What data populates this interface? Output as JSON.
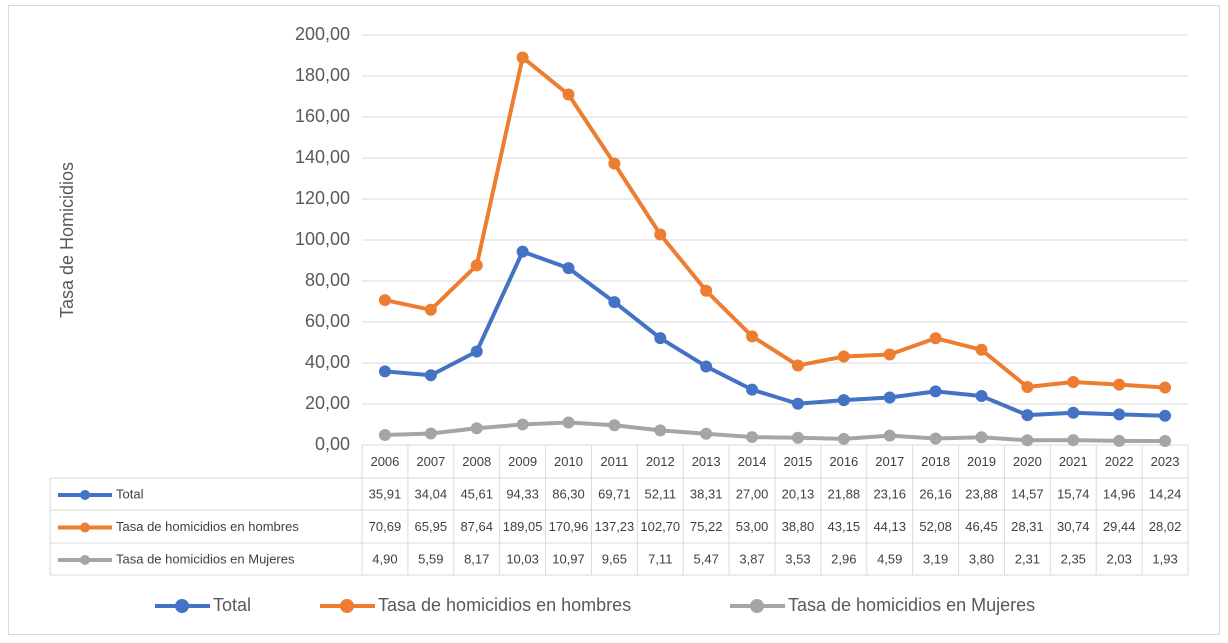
{
  "chart_data": {
    "type": "line",
    "y_label": "Tasa de Homicidios",
    "categories": [
      "2006",
      "2007",
      "2008",
      "2009",
      "2010",
      "2011",
      "2012",
      "2013",
      "2014",
      "2015",
      "2016",
      "2017",
      "2018",
      "2019",
      "2020",
      "2021",
      "2022",
      "2023"
    ],
    "series": [
      {
        "name": "Total",
        "color": "#4472c4",
        "values": [
          35.91,
          34.04,
          45.61,
          94.33,
          86.3,
          69.71,
          52.11,
          38.31,
          27.0,
          20.13,
          21.88,
          23.16,
          26.16,
          23.88,
          14.57,
          15.74,
          14.96,
          14.24
        ],
        "value_labels": [
          "35,91",
          "34,04",
          "45,61",
          "94,33",
          "86,30",
          "69,71",
          "52,11",
          "38,31",
          "27,00",
          "20,13",
          "21,88",
          "23,16",
          "26,16",
          "23,88",
          "14,57",
          "15,74",
          "14,96",
          "14,24"
        ]
      },
      {
        "name": "Tasa de homicidios en hombres",
        "color": "#ed7d31",
        "values": [
          70.69,
          65.95,
          87.64,
          189.05,
          170.96,
          137.23,
          102.7,
          75.22,
          53.0,
          38.8,
          43.15,
          44.13,
          52.08,
          46.45,
          28.31,
          30.74,
          29.44,
          28.02
        ],
        "value_labels": [
          "70,69",
          "65,95",
          "87,64",
          "189,05",
          "170,96",
          "137,23",
          "102,70",
          "75,22",
          "53,00",
          "38,80",
          "43,15",
          "44,13",
          "52,08",
          "46,45",
          "28,31",
          "30,74",
          "29,44",
          "28,02"
        ]
      },
      {
        "name": "Tasa de homicidios en Mujeres",
        "color": "#a5a5a5",
        "values": [
          4.9,
          5.59,
          8.17,
          10.03,
          10.97,
          9.65,
          7.11,
          5.47,
          3.87,
          3.53,
          2.96,
          4.59,
          3.19,
          3.8,
          2.31,
          2.35,
          2.03,
          1.93
        ],
        "value_labels": [
          "4,90",
          "5,59",
          "8,17",
          "10,03",
          "10,97",
          "9,65",
          "7,11",
          "5,47",
          "3,87",
          "3,53",
          "2,96",
          "4,59",
          "3,19",
          "3,80",
          "2,31",
          "2,35",
          "2,03",
          "1,93"
        ]
      }
    ],
    "ylim": [
      0,
      200
    ],
    "yticks": [
      {
        "value": 0,
        "label": "0,00"
      },
      {
        "value": 20,
        "label": "20,00"
      },
      {
        "value": 40,
        "label": "40,00"
      },
      {
        "value": 60,
        "label": "60,00"
      },
      {
        "value": 80,
        "label": "80,00"
      },
      {
        "value": 100,
        "label": "100,00"
      },
      {
        "value": 120,
        "label": "120,00"
      },
      {
        "value": 140,
        "label": "140,00"
      },
      {
        "value": 160,
        "label": "160,00"
      },
      {
        "value": 180,
        "label": "180,00"
      },
      {
        "value": 200,
        "label": "200,00"
      }
    ],
    "grid": true,
    "legend": "bottom"
  }
}
